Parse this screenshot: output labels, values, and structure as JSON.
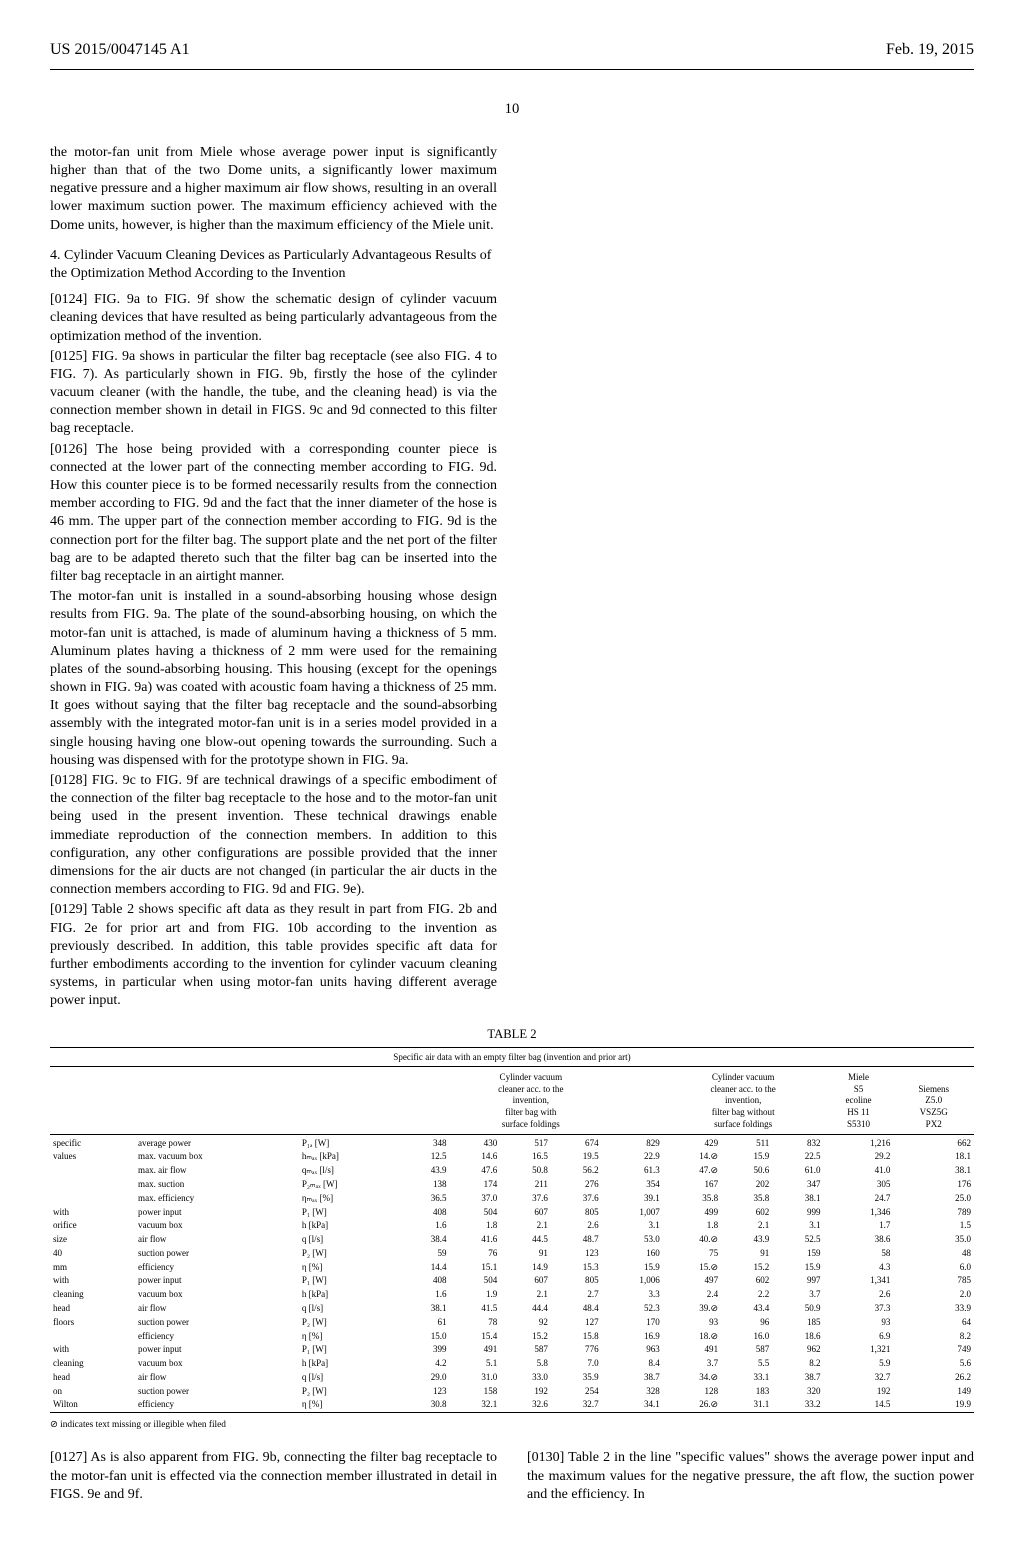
{
  "header": {
    "left": "US 2015/0047145 A1",
    "right": "Feb. 19, 2015"
  },
  "page_number": "10",
  "col1": {
    "p1": "the motor-fan unit from Miele whose average power input is significantly higher than that of the two Dome units, a significantly lower maximum negative pressure and a higher maximum air flow shows, resulting in an overall lower maximum suction power. The maximum efficiency achieved with the Dome units, however, is higher than the maximum efficiency of the Miele unit.",
    "section4": "4. Cylinder Vacuum Cleaning Devices as Particularly Advantageous Results of the Optimization Method According to the Invention",
    "p0124": "[0124]   FIG. 9a to FIG. 9f show the schematic design of cylinder vacuum cleaning devices that have resulted as being particularly advantageous from the optimization method of the invention.",
    "p0125": "[0125]   FIG. 9a shows in particular the filter bag receptacle (see also FIG. 4 to FIG. 7). As particularly shown in FIG. 9b, firstly the hose of the cylinder vacuum cleaner (with the handle, the tube, and the cleaning head) is via the connection member shown in detail in FIGS. 9c and 9d connected to this filter bag receptacle.",
    "p0126": "[0126]   The hose being provided with a corresponding counter piece is connected at the lower part of the connecting member according to FIG. 9d. How this counter piece is to be formed necessarily results from the connection member according to FIG. 9d and the fact that the inner diameter of the hose is 46 mm. The upper part of the connection member according to FIG. 9d is the connection port for the filter bag. The support plate and the net port of the filter bag are to be adapted thereto such that the filter bag can be inserted into the filter bag receptacle in an airtight manner."
  },
  "col2": {
    "p2a": "The motor-fan unit is installed in a sound-absorbing housing whose design results from FIG. 9a. The plate of the sound-absorbing housing, on which the motor-fan unit is attached, is made of aluminum having a thickness of 5 mm. Aluminum plates having a thickness of 2 mm were used for the remaining plates of the sound-absorbing housing. This housing (except for the openings shown in FIG. 9a) was coated with acoustic foam having a thickness of 25 mm. It goes without saying that the filter bag receptacle and the sound-absorbing assembly with the integrated motor-fan unit is in a series model provided in a single housing having one blow-out opening towards the surrounding. Such a housing was dispensed with for the prototype shown in FIG. 9a.",
    "p0128": "[0128]   FIG. 9c to FIG. 9f are technical drawings of a specific embodiment of the connection of the filter bag receptacle to the hose and to the motor-fan unit being used in the present invention. These technical drawings enable immediate reproduction of the connection members. In addition to this configuration, any other configurations are possible provided that the inner dimensions for the air ducts are not changed (in particular the air ducts in the connection members according to FIG. 9d and FIG. 9e).",
    "p0129": "[0129]   Table 2 shows specific aft data as they result in part from FIG. 2b and FIG. 2e for prior art and from FIG. 10b according to the invention as previously described. In addition, this table provides specific aft data for further embodiments according to the invention for cylinder vacuum cleaning systems, in particular when using motor-fan units having different average power input."
  },
  "table": {
    "title": "TABLE 2",
    "caption": "Specific air data with an empty filter bag (invention and prior art)",
    "group_headers": {
      "g1": "Cylinder vacuum\ncleaner acc. to the\ninvention,\nfilter bag with\nsurface foldings",
      "g2": "Cylinder vacuum\ncleaner acc. to the\ninvention,\nfilter bag without\nsurface foldings",
      "g3": "Miele\nS5\necoline\nHS 11\nS5310",
      "g4": "Siemens\nZ5.0\nVSZ5G\nPX2"
    },
    "row_groups": [
      {
        "group": "specific values",
        "rows": [
          {
            "l": "average power",
            "u": "P₁ₐ [W]",
            "v": [
              "348",
              "430",
              "517",
              "674",
              "829",
              "429",
              "511",
              "832",
              "1,216",
              "662"
            ]
          },
          {
            "l": "max. vacuum box",
            "u": "hₘₐₓ [kPa]",
            "v": [
              "12.5",
              "14.6",
              "16.5",
              "19.5",
              "22.9",
              "14.⊘",
              "15.9",
              "22.5",
              "29.2",
              "18.1"
            ]
          },
          {
            "l": "max. air flow",
            "u": "qₘₐₓ [l/s]",
            "v": [
              "43.9",
              "47.6",
              "50.8",
              "56.2",
              "61.3",
              "47.⊘",
              "50.6",
              "61.0",
              "41.0",
              "38.1"
            ]
          },
          {
            "l": "max. suction",
            "u": "P₂ₘₐₓ [W]",
            "v": [
              "138",
              "174",
              "211",
              "276",
              "354",
              "167",
              "202",
              "347",
              "305",
              "176"
            ]
          },
          {
            "l": "max. efficiency",
            "u": "ηₘₐₓ [%]",
            "v": [
              "36.5",
              "37.0",
              "37.6",
              "37.6",
              "39.1",
              "35.8",
              "35.8",
              "38.1",
              "24.7",
              "25.0"
            ]
          }
        ]
      },
      {
        "group": "with orifice size 40 mm",
        "rows": [
          {
            "l": "power input",
            "u": "P₁ [W]",
            "v": [
              "408",
              "504",
              "607",
              "805",
              "1,007",
              "499",
              "602",
              "999",
              "1,346",
              "789"
            ]
          },
          {
            "l": "vacuum box",
            "u": "h [kPa]",
            "v": [
              "1.6",
              "1.8",
              "2.1",
              "2.6",
              "3.1",
              "1.8",
              "2.1",
              "3.1",
              "1.7",
              "1.5"
            ]
          },
          {
            "l": "air flow",
            "u": "q [l/s]",
            "v": [
              "38.4",
              "41.6",
              "44.5",
              "48.7",
              "53.0",
              "40.⊘",
              "43.9",
              "52.5",
              "38.6",
              "35.0"
            ]
          },
          {
            "l": "suction power",
            "u": "P₂ [W]",
            "v": [
              "59",
              "76",
              "91",
              "123",
              "160",
              "75",
              "91",
              "159",
              "58",
              "48"
            ]
          },
          {
            "l": "efficiency",
            "u": "η [%]",
            "v": [
              "14.4",
              "15.1",
              "14.9",
              "15.3",
              "15.9",
              "15.⊘",
              "15.2",
              "15.9",
              "4.3",
              "6.0"
            ]
          }
        ]
      },
      {
        "group": "with cleaning head floors",
        "rows": [
          {
            "l": "power input",
            "u": "P₁ [W]",
            "v": [
              "408",
              "504",
              "607",
              "805",
              "1,006",
              "497",
              "602",
              "997",
              "1,341",
              "785"
            ]
          },
          {
            "l": "vacuum box",
            "u": "h [kPa]",
            "v": [
              "1.6",
              "1.9",
              "2.1",
              "2.7",
              "3.3",
              "2.4",
              "2.2",
              "3.7",
              "2.6",
              "2.0"
            ]
          },
          {
            "l": "air flow",
            "u": "q [l/s]",
            "v": [
              "38.1",
              "41.5",
              "44.4",
              "48.4",
              "52.3",
              "39.⊘",
              "43.4",
              "50.9",
              "37.3",
              "33.9"
            ]
          },
          {
            "l": "suction power",
            "u": "P₂ [W]",
            "v": [
              "61",
              "78",
              "92",
              "127",
              "170",
              "93",
              "96",
              "185",
              "93",
              "64"
            ]
          },
          {
            "l": "efficiency",
            "u": "η [%]",
            "v": [
              "15.0",
              "15.4",
              "15.2",
              "15.8",
              "16.9",
              "18.⊘",
              "16.0",
              "18.6",
              "6.9",
              "8.2"
            ]
          }
        ]
      },
      {
        "group": "with cleaning head on Wilton",
        "rows": [
          {
            "l": "power input",
            "u": "P₁ [W]",
            "v": [
              "399",
              "491",
              "587",
              "776",
              "963",
              "491",
              "587",
              "962",
              "1,321",
              "749"
            ]
          },
          {
            "l": "vacuum box",
            "u": "h [kPa]",
            "v": [
              "4.2",
              "5.1",
              "5.8",
              "7.0",
              "8.4",
              "3.7",
              "5.5",
              "8.2",
              "5.9",
              "5.6"
            ]
          },
          {
            "l": "air flow",
            "u": "q [l/s]",
            "v": [
              "29.0",
              "31.0",
              "33.0",
              "35.9",
              "38.7",
              "34.⊘",
              "33.1",
              "38.7",
              "32.7",
              "26.2"
            ]
          },
          {
            "l": "suction power",
            "u": "P₂ [W]",
            "v": [
              "123",
              "158",
              "192",
              "254",
              "328",
              "128",
              "183",
              "320",
              "192",
              "149"
            ]
          },
          {
            "l": "efficiency",
            "u": "η [%]",
            "v": [
              "30.8",
              "32.1",
              "32.6",
              "32.7",
              "34.1",
              "26.⊘",
              "31.1",
              "33.2",
              "14.5",
              "19.9"
            ]
          }
        ]
      }
    ],
    "footnote": "⊘ indicates text missing or illegible when filed"
  },
  "bottom": {
    "p0127": "[0127]   As is also apparent from FIG. 9b, connecting the filter bag receptacle to the motor-fan unit is effected via the connection member illustrated in detail in FIGS. 9e and 9f.",
    "p0130": "[0130]   Table 2 in the line \"specific values\" shows the average power input and the maximum values for the negative pressure, the aft flow, the suction power and the efficiency. In"
  }
}
